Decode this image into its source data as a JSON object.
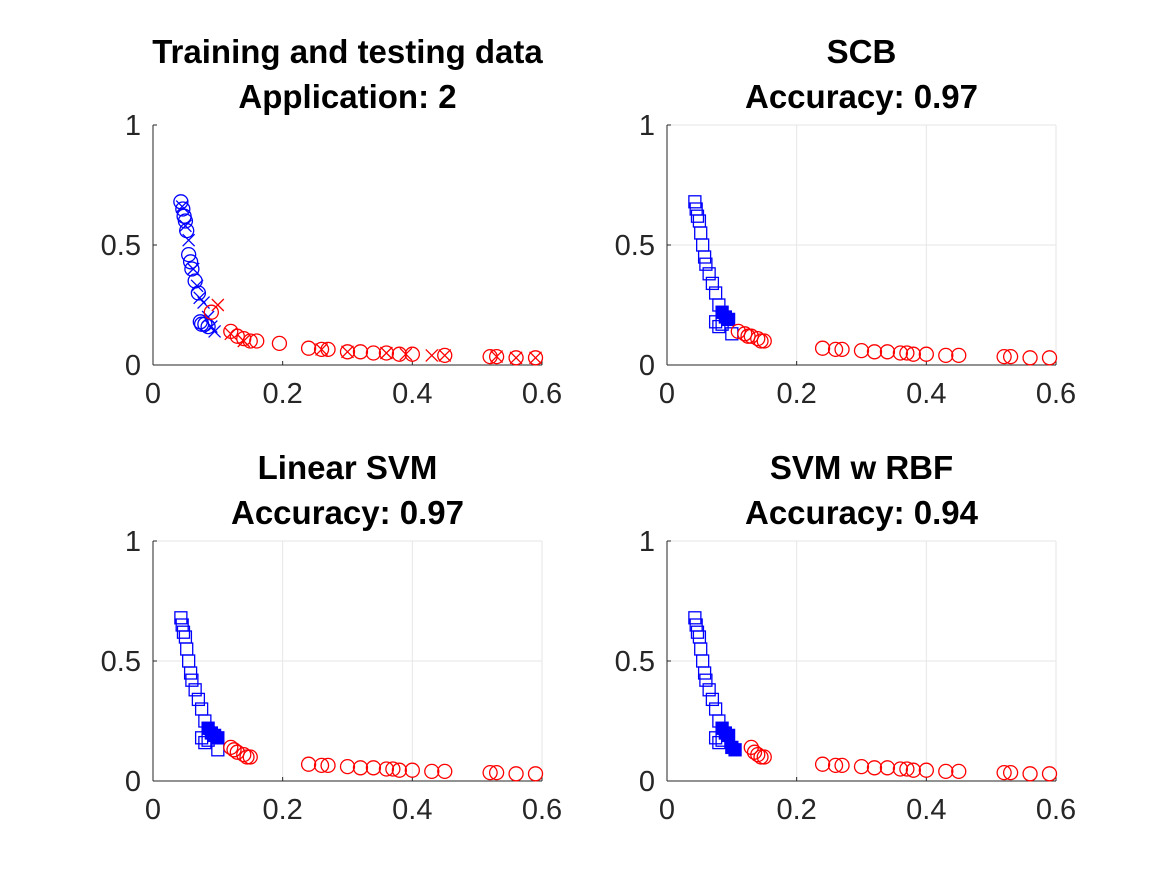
{
  "chart_data": [
    {
      "type": "scatter",
      "title": [
        "Training and testing data",
        "Application: 2"
      ],
      "xlim": [
        0,
        0.6
      ],
      "ylim": [
        0,
        1
      ],
      "xticks": [
        0,
        0.2,
        0.4,
        0.6
      ],
      "yticks": [
        0,
        0.5,
        1
      ],
      "xtick_labels": [
        "0",
        "0.2",
        "0.4",
        "0.6"
      ],
      "ytick_labels": [
        "0",
        "0.5",
        "1"
      ],
      "grid": false,
      "series": [
        {
          "name": "class 1 (circles)",
          "marker": "circle",
          "color": "#0000ff",
          "x": [
            0.043,
            0.046,
            0.048,
            0.05,
            0.052,
            0.055,
            0.058,
            0.06,
            0.065,
            0.07,
            0.073,
            0.075,
            0.08,
            0.085
          ],
          "y": [
            0.68,
            0.65,
            0.62,
            0.6,
            0.56,
            0.46,
            0.43,
            0.4,
            0.35,
            0.3,
            0.18,
            0.17,
            0.17,
            0.16
          ]
        },
        {
          "name": "class 1 (crosses)",
          "marker": "x",
          "color": "#0000ff",
          "x": [
            0.045,
            0.05,
            0.055,
            0.062,
            0.068,
            0.072,
            0.078,
            0.085,
            0.09,
            0.095
          ],
          "y": [
            0.66,
            0.58,
            0.52,
            0.4,
            0.33,
            0.28,
            0.26,
            0.2,
            0.16,
            0.14
          ]
        },
        {
          "name": "class 2 (circles)",
          "marker": "circle",
          "color": "#ff0000",
          "x": [
            0.09,
            0.12,
            0.13,
            0.14,
            0.15,
            0.16,
            0.195,
            0.24,
            0.26,
            0.27,
            0.3,
            0.32,
            0.34,
            0.36,
            0.38,
            0.4,
            0.45,
            0.52,
            0.53,
            0.56,
            0.59
          ],
          "y": [
            0.22,
            0.14,
            0.12,
            0.11,
            0.1,
            0.1,
            0.09,
            0.07,
            0.065,
            0.065,
            0.055,
            0.055,
            0.05,
            0.05,
            0.045,
            0.045,
            0.04,
            0.035,
            0.035,
            0.03,
            0.03
          ]
        },
        {
          "name": "class 2 (crosses)",
          "marker": "x",
          "color": "#ff0000",
          "x": [
            0.1,
            0.12,
            0.14,
            0.26,
            0.3,
            0.36,
            0.39,
            0.43,
            0.45,
            0.53,
            0.56,
            0.59
          ],
          "y": [
            0.25,
            0.13,
            0.1,
            0.065,
            0.055,
            0.05,
            0.045,
            0.04,
            0.04,
            0.035,
            0.03,
            0.03
          ]
        }
      ]
    },
    {
      "type": "scatter",
      "title": [
        "SCB",
        "Accuracy: 0.97"
      ],
      "xlim": [
        0,
        0.6
      ],
      "ylim": [
        0,
        1
      ],
      "xticks": [
        0,
        0.2,
        0.4,
        0.6
      ],
      "yticks": [
        0,
        0.5,
        1
      ],
      "xtick_labels": [
        "0",
        "0.2",
        "0.4",
        "0.6"
      ],
      "ytick_labels": [
        "0",
        "0.5",
        "1"
      ],
      "grid": true,
      "series": [
        {
          "name": "class 1 predicted",
          "marker": "square",
          "color": "#0000ff",
          "x": [
            0.043,
            0.045,
            0.047,
            0.05,
            0.052,
            0.055,
            0.058,
            0.06,
            0.065,
            0.07,
            0.075,
            0.08,
            0.085,
            0.1,
            0.075,
            0.08
          ],
          "y": [
            0.68,
            0.65,
            0.62,
            0.6,
            0.55,
            0.5,
            0.45,
            0.42,
            0.38,
            0.34,
            0.3,
            0.25,
            0.17,
            0.13,
            0.18,
            0.16
          ]
        },
        {
          "name": "class 1 misclassified",
          "marker": "square-filled",
          "color": "#0000ff",
          "x": [
            0.085,
            0.09,
            0.095
          ],
          "y": [
            0.22,
            0.2,
            0.19
          ]
        },
        {
          "name": "class 2 predicted",
          "marker": "circle",
          "color": "#ff0000",
          "x": [
            0.11,
            0.12,
            0.125,
            0.13,
            0.14,
            0.145,
            0.15,
            0.24,
            0.26,
            0.27,
            0.3,
            0.32,
            0.34,
            0.36,
            0.37,
            0.38,
            0.4,
            0.43,
            0.45,
            0.52,
            0.53,
            0.56,
            0.59
          ],
          "y": [
            0.14,
            0.13,
            0.12,
            0.12,
            0.11,
            0.1,
            0.1,
            0.07,
            0.065,
            0.065,
            0.06,
            0.055,
            0.055,
            0.05,
            0.05,
            0.045,
            0.045,
            0.04,
            0.04,
            0.035,
            0.035,
            0.03,
            0.03
          ]
        }
      ]
    },
    {
      "type": "scatter",
      "title": [
        "Linear SVM",
        "Accuracy: 0.97"
      ],
      "xlim": [
        0,
        0.6
      ],
      "ylim": [
        0,
        1
      ],
      "xticks": [
        0,
        0.2,
        0.4,
        0.6
      ],
      "yticks": [
        0,
        0.5,
        1
      ],
      "xtick_labels": [
        "0",
        "0.2",
        "0.4",
        "0.6"
      ],
      "ytick_labels": [
        "0",
        "0.5",
        "1"
      ],
      "grid": true,
      "series": [
        {
          "name": "class 1 predicted",
          "marker": "square",
          "color": "#0000ff",
          "x": [
            0.043,
            0.045,
            0.047,
            0.05,
            0.052,
            0.055,
            0.058,
            0.06,
            0.065,
            0.07,
            0.075,
            0.08,
            0.085,
            0.1,
            0.075,
            0.08
          ],
          "y": [
            0.68,
            0.65,
            0.62,
            0.6,
            0.55,
            0.5,
            0.45,
            0.42,
            0.38,
            0.34,
            0.3,
            0.25,
            0.17,
            0.13,
            0.18,
            0.16
          ]
        },
        {
          "name": "class 1 misclassified",
          "marker": "square-filled",
          "color": "#0000ff",
          "x": [
            0.085,
            0.09,
            0.095,
            0.1
          ],
          "y": [
            0.22,
            0.2,
            0.19,
            0.18
          ]
        },
        {
          "name": "class 2 predicted",
          "marker": "circle",
          "color": "#ff0000",
          "x": [
            0.12,
            0.125,
            0.13,
            0.14,
            0.145,
            0.15,
            0.24,
            0.26,
            0.27,
            0.3,
            0.32,
            0.34,
            0.36,
            0.37,
            0.38,
            0.4,
            0.43,
            0.45,
            0.52,
            0.53,
            0.56,
            0.59
          ],
          "y": [
            0.14,
            0.13,
            0.12,
            0.11,
            0.1,
            0.1,
            0.07,
            0.065,
            0.065,
            0.06,
            0.055,
            0.055,
            0.05,
            0.05,
            0.045,
            0.045,
            0.04,
            0.04,
            0.035,
            0.035,
            0.03,
            0.03
          ]
        }
      ]
    },
    {
      "type": "scatter",
      "title": [
        "SVM w RBF",
        "Accuracy: 0.94"
      ],
      "xlim": [
        0,
        0.6
      ],
      "ylim": [
        0,
        1
      ],
      "xticks": [
        0,
        0.2,
        0.4,
        0.6
      ],
      "yticks": [
        0,
        0.5,
        1
      ],
      "xtick_labels": [
        "0",
        "0.2",
        "0.4",
        "0.6"
      ],
      "ytick_labels": [
        "0",
        "0.5",
        "1"
      ],
      "grid": true,
      "series": [
        {
          "name": "class 1 predicted",
          "marker": "square",
          "color": "#0000ff",
          "x": [
            0.043,
            0.045,
            0.047,
            0.05,
            0.052,
            0.055,
            0.058,
            0.06,
            0.065,
            0.07,
            0.075,
            0.08,
            0.085,
            0.075,
            0.08
          ],
          "y": [
            0.68,
            0.65,
            0.62,
            0.6,
            0.55,
            0.5,
            0.45,
            0.42,
            0.38,
            0.34,
            0.3,
            0.25,
            0.17,
            0.18,
            0.16
          ]
        },
        {
          "name": "class 1 misclassified",
          "marker": "square-filled",
          "color": "#0000ff",
          "x": [
            0.085,
            0.09,
            0.095,
            0.1,
            0.105
          ],
          "y": [
            0.22,
            0.2,
            0.19,
            0.14,
            0.13
          ]
        },
        {
          "name": "class 2 predicted",
          "marker": "circle",
          "color": "#ff0000",
          "x": [
            0.13,
            0.135,
            0.14,
            0.145,
            0.15,
            0.24,
            0.26,
            0.27,
            0.3,
            0.32,
            0.34,
            0.36,
            0.37,
            0.38,
            0.4,
            0.43,
            0.45,
            0.52,
            0.53,
            0.56,
            0.59
          ],
          "y": [
            0.14,
            0.12,
            0.11,
            0.1,
            0.1,
            0.07,
            0.065,
            0.065,
            0.06,
            0.055,
            0.055,
            0.05,
            0.05,
            0.045,
            0.045,
            0.04,
            0.04,
            0.035,
            0.035,
            0.03,
            0.03
          ]
        }
      ]
    }
  ]
}
